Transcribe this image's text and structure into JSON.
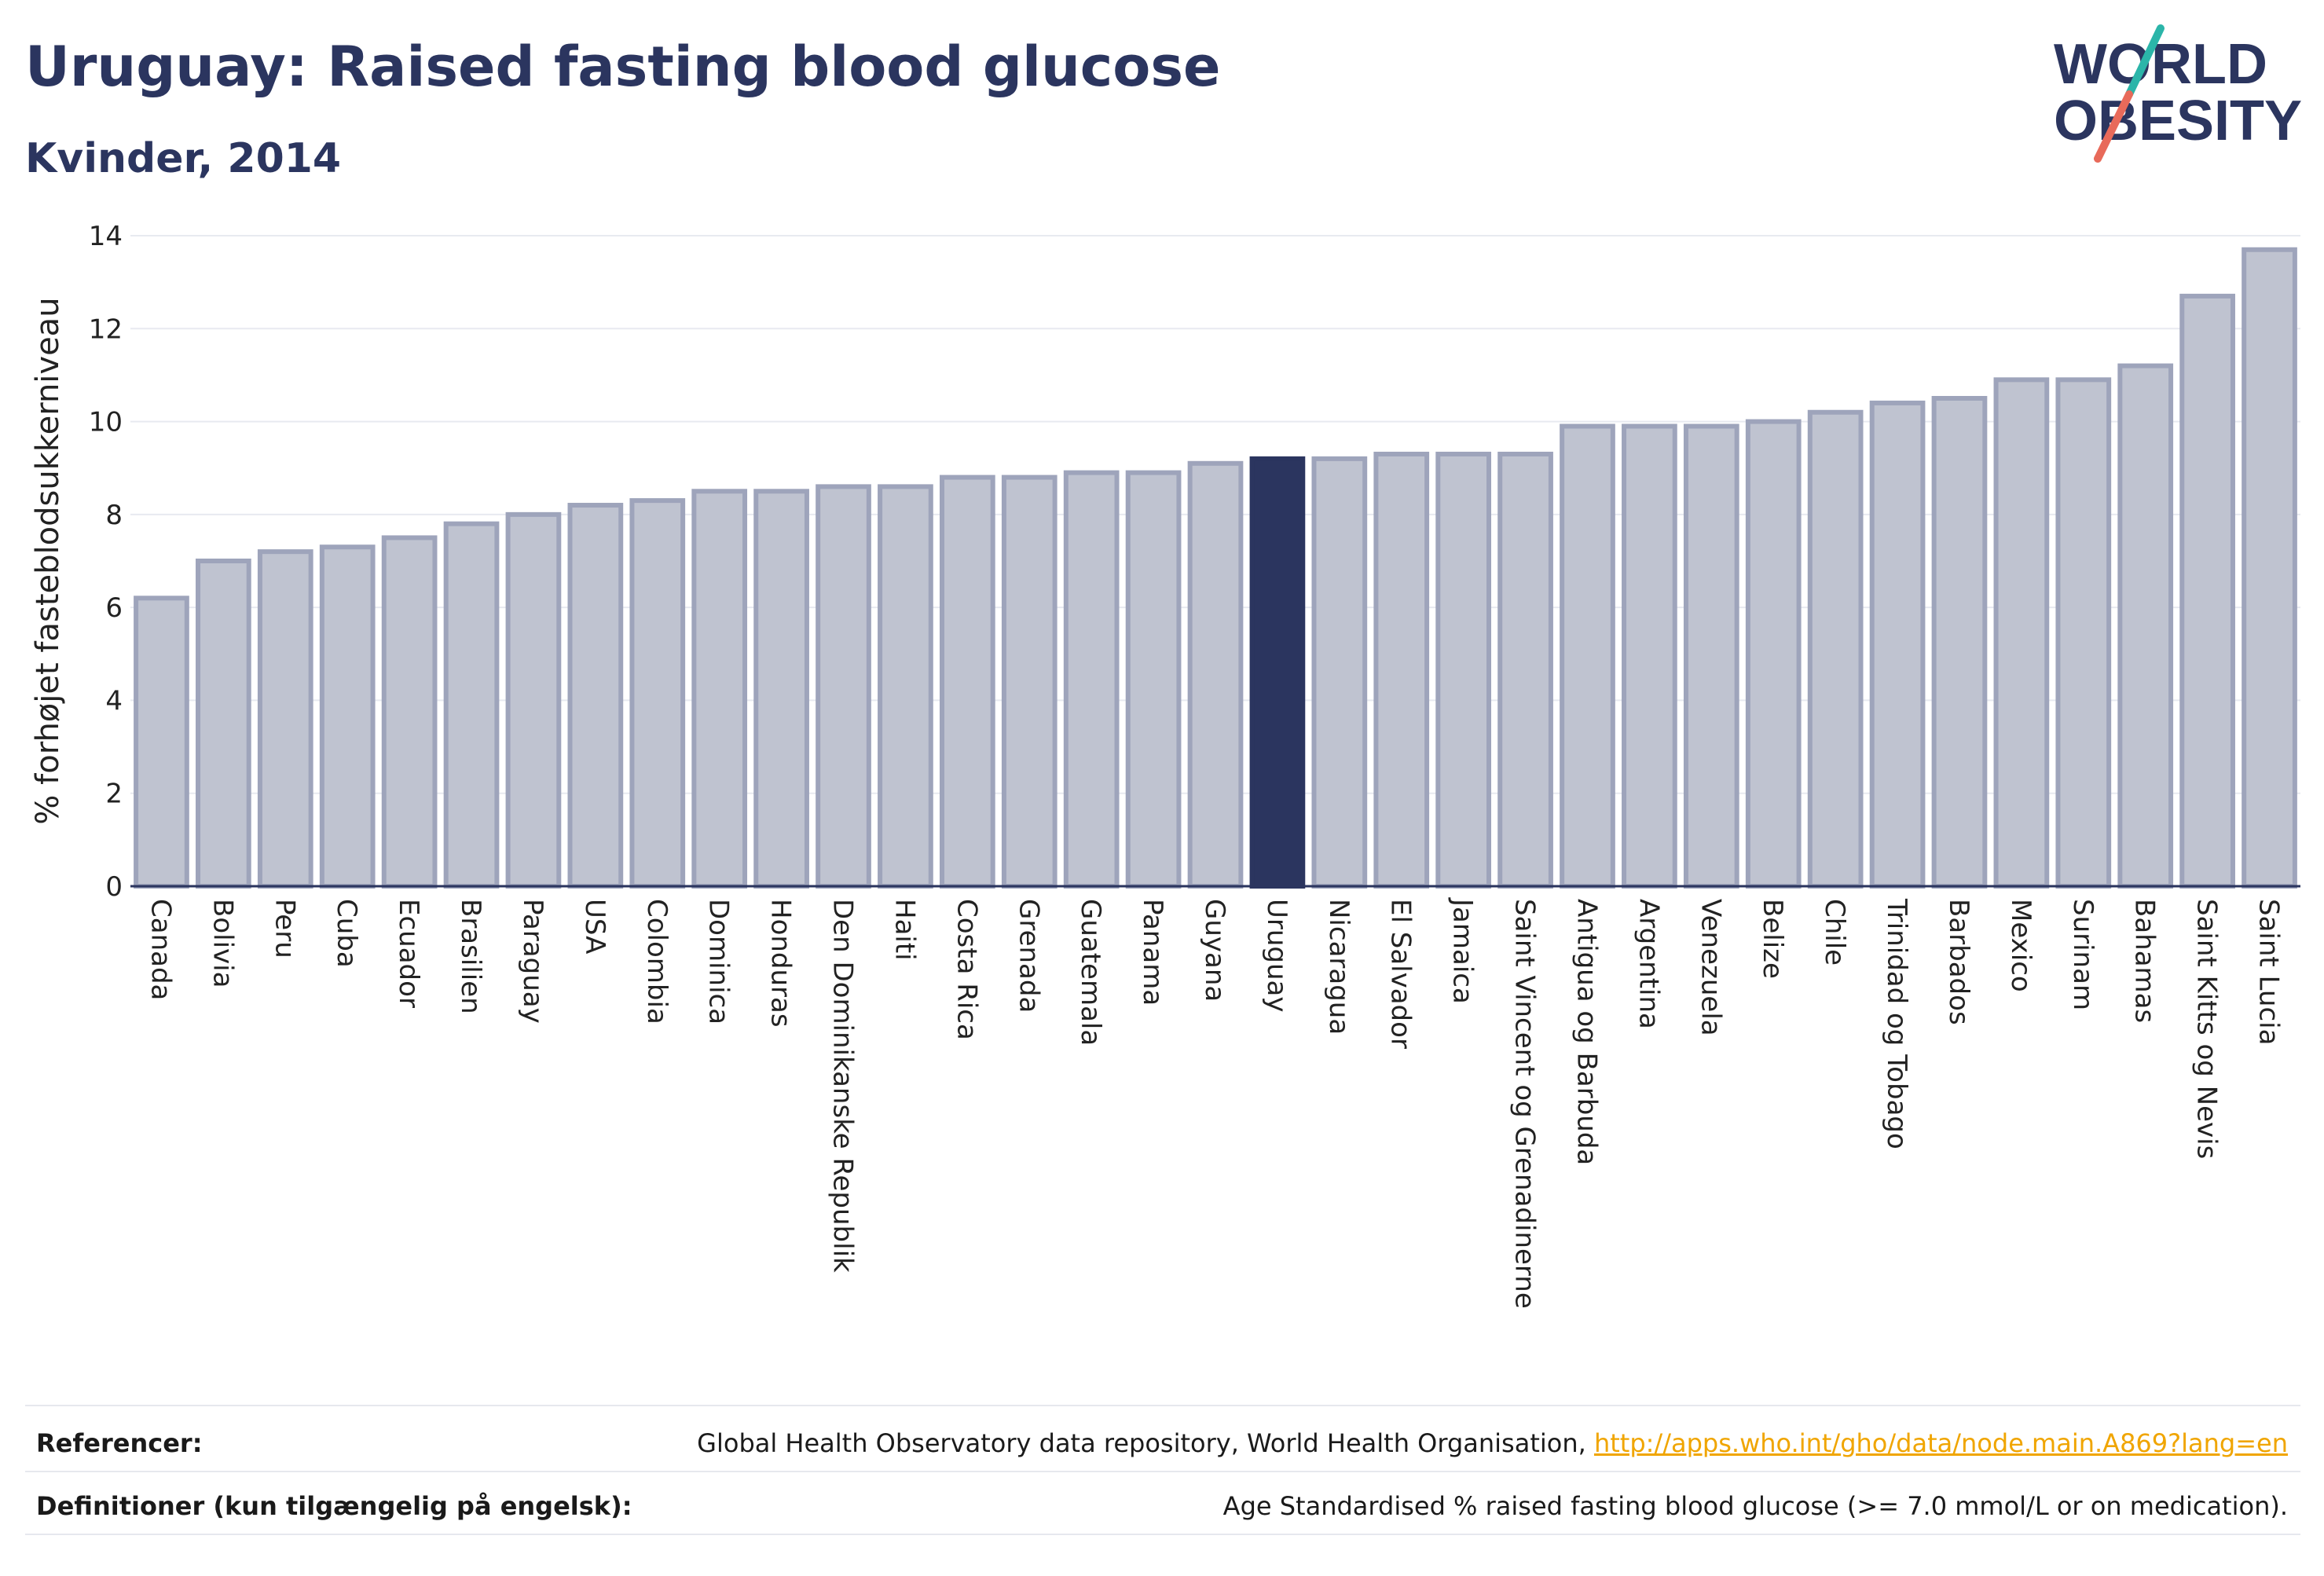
{
  "header": {
    "title": "Uruguay: Raised fasting blood glucose",
    "subtitle": "Kvinder, 2014"
  },
  "logo": {
    "line1": "WORLD",
    "line2": "OBESITY",
    "colors": {
      "text": "#2b355f",
      "slash_top": "#2bb5a9",
      "slash_bottom": "#e86a5a"
    }
  },
  "colors": {
    "bar_default": "#bfc3d0",
    "bar_border": "#9ea4bb",
    "bar_highlight": "#2b355f",
    "grid": "#e8eaf0",
    "axis": "#2b355f",
    "link": "#f0a500"
  },
  "chart_data": {
    "type": "bar",
    "title": "Uruguay: Raised fasting blood glucose",
    "subtitle": "Kvinder, 2014",
    "xlabel": "",
    "ylabel": "% forhøjet fasteblodsukkerniveau",
    "ylim": [
      0,
      14
    ],
    "yticks": [
      0,
      2,
      4,
      6,
      8,
      10,
      12,
      14
    ],
    "grid": true,
    "highlight": "Uruguay",
    "categories": [
      "Canada",
      "Bolivia",
      "Peru",
      "Cuba",
      "Ecuador",
      "Brasilien",
      "Paraguay",
      "USA",
      "Colombia",
      "Dominica",
      "Honduras",
      "Den Dominikanske Republik",
      "Haiti",
      "Costa Rica",
      "Grenada",
      "Guatemala",
      "Panama",
      "Guyana",
      "Uruguay",
      "Nicaragua",
      "El Salvador",
      "Jamaica",
      "Saint Vincent og Grenadinerne",
      "Antigua og Barbuda",
      "Argentina",
      "Venezuela",
      "Belize",
      "Chile",
      "Trinidad og Tobago",
      "Barbados",
      "Mexico",
      "Surinam",
      "Bahamas",
      "Saint Kitts og Nevis",
      "Saint Lucia"
    ],
    "values": [
      6.2,
      7.0,
      7.2,
      7.3,
      7.5,
      7.8,
      8.0,
      8.2,
      8.3,
      8.5,
      8.5,
      8.6,
      8.6,
      8.8,
      8.8,
      8.9,
      8.9,
      9.1,
      9.2,
      9.2,
      9.3,
      9.3,
      9.3,
      9.9,
      9.9,
      9.9,
      10.0,
      10.2,
      10.4,
      10.5,
      10.9,
      10.9,
      11.2,
      12.7,
      13.7
    ]
  },
  "footer": {
    "references_label": "Referencer:",
    "references_text": "Global Health Observatory data repository, World Health Organisation, ",
    "references_link": "http://apps.who.int/gho/data/node.main.A869?lang=en",
    "definitions_label": "Definitioner (kun tilgængelig på engelsk):",
    "definitions_text": "Age Standardised % raised fasting blood glucose (>= 7.0 mmol/L or on medication)."
  }
}
